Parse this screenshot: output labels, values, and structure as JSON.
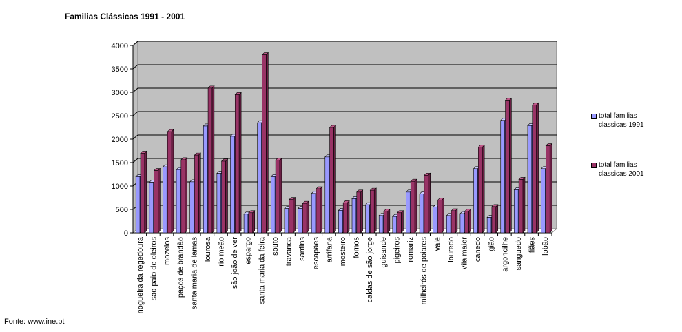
{
  "chart_data": {
    "type": "bar",
    "title": "Familias Clássicas 1991 - 2001",
    "source": "Fonte: www.ine.pt",
    "ylim": [
      0,
      4000
    ],
    "yticks": [
      0,
      500,
      1000,
      1500,
      2000,
      2500,
      3000,
      3500,
      4000
    ],
    "grid": true,
    "legend_position": "right",
    "categories": [
      "nogueira da regedoura",
      "sao paio de oleiros",
      "mozelos",
      "paços de brandão",
      "santa maria de lamas",
      "lourosa",
      "rio meão",
      "são joão de ver",
      "espargo",
      "santa maria da feira",
      "souto",
      "travanca",
      "sanfins",
      "escapães",
      "arrifana",
      "mosteiro",
      "fornos",
      "caldas de são jorge",
      "guisande",
      "pigeiros",
      "romariz",
      "milheirós de poiares",
      "vale",
      "louredo",
      "vila maior",
      "canedo",
      "gião",
      "argoncilhe",
      "sanguedo",
      "fiães",
      "lobão"
    ],
    "series": [
      {
        "name": "total familias classicas 1991",
        "color": "#9999ff",
        "values": [
          1200,
          1080,
          1410,
          1350,
          1090,
          2280,
          1270,
          2060,
          400,
          2350,
          1200,
          520,
          520,
          840,
          1620,
          480,
          730,
          600,
          370,
          350,
          870,
          830,
          550,
          370,
          410,
          1370,
          330,
          2400,
          920,
          2290,
          1370
        ]
      },
      {
        "name": "total familias classicas 2001",
        "color": "#993366",
        "values": [
          1700,
          1330,
          2160,
          1560,
          1660,
          3090,
          1530,
          2950,
          430,
          3800,
          1550,
          710,
          630,
          940,
          2250,
          640,
          870,
          910,
          460,
          430,
          1100,
          1230,
          700,
          470,
          460,
          1830,
          560,
          2830,
          1140,
          2730,
          1860
        ]
      }
    ]
  }
}
